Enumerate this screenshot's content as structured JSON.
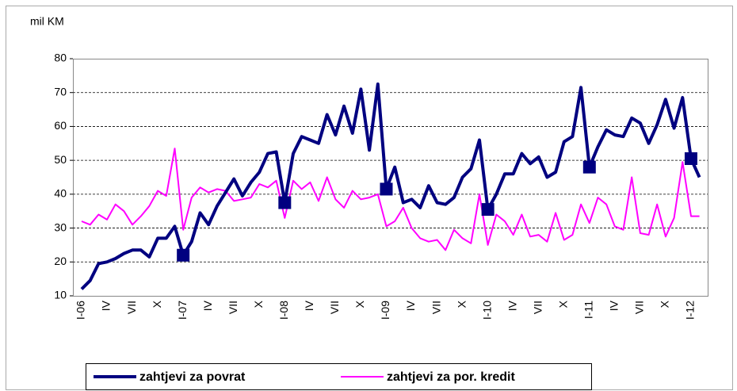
{
  "chart_data": {
    "type": "line",
    "y_label": "mil KM",
    "categories": [
      "I-06",
      null,
      null,
      "IV",
      null,
      null,
      "VII",
      null,
      null,
      "X",
      null,
      null,
      "I-07",
      null,
      null,
      "IV",
      null,
      null,
      "VII",
      null,
      null,
      "X",
      null,
      null,
      "I-08",
      null,
      null,
      "IV",
      null,
      null,
      "VII",
      null,
      null,
      "X",
      null,
      null,
      "I-09",
      null,
      null,
      "IV",
      null,
      null,
      "VII",
      null,
      null,
      "X",
      null,
      null,
      "I-10",
      null,
      null,
      "IV",
      null,
      null,
      "VII",
      null,
      null,
      "X",
      null,
      null,
      "I-11",
      null,
      null,
      "IV",
      null,
      null,
      "VII",
      null,
      null,
      "X",
      null,
      null,
      "I-12",
      null
    ],
    "ylim": [
      10,
      80
    ],
    "yticks": [
      10,
      20,
      30,
      40,
      50,
      60,
      70,
      80
    ],
    "grid": true,
    "series": [
      {
        "name": "zahtjevi za povrat",
        "color": "#000080",
        "markers": [
          12,
          24,
          36,
          48,
          60,
          72
        ],
        "values": [
          12,
          14.5,
          19.5,
          20,
          21,
          22.5,
          23.5,
          23.5,
          21.5,
          27,
          27,
          30.5,
          22,
          26,
          34.5,
          31,
          36.5,
          40.5,
          44.5,
          39.5,
          43.5,
          46.5,
          52,
          52.5,
          37.5,
          52,
          57,
          56,
          55,
          63.5,
          57.5,
          66,
          58,
          71,
          53,
          72.5,
          41.5,
          48,
          37.5,
          38.5,
          36,
          42.5,
          37.5,
          37,
          39,
          45,
          47.5,
          56,
          35.5,
          40,
          46,
          46,
          52,
          49,
          51,
          45,
          46.5,
          55.5,
          57,
          71.5,
          48,
          54,
          59,
          57.5,
          57,
          62.5,
          61,
          55,
          60.5,
          68,
          59.5,
          68.5,
          50.5,
          45
        ]
      },
      {
        "name": "zahtjevi za por. kredit",
        "color": "#ff00ff",
        "values": [
          32,
          31,
          34,
          32.5,
          37,
          35,
          31,
          33.5,
          36.5,
          41,
          39.5,
          53.5,
          29.5,
          39,
          42,
          40.5,
          41.5,
          41,
          38,
          38.5,
          39,
          43,
          42,
          44,
          33,
          44,
          41.5,
          43.5,
          38,
          45,
          38.5,
          36,
          41,
          38.5,
          39,
          40,
          30.5,
          32,
          36,
          30,
          27,
          26,
          26.5,
          23.5,
          29.5,
          27,
          25.5,
          40,
          25,
          34,
          32,
          28,
          34,
          27.5,
          28,
          26,
          34.5,
          26.5,
          28,
          37,
          31.5,
          39,
          37,
          30.5,
          29.5,
          45,
          28.5,
          28,
          37,
          27.5,
          33,
          49.5,
          33.5,
          33.5
        ]
      }
    ]
  }
}
